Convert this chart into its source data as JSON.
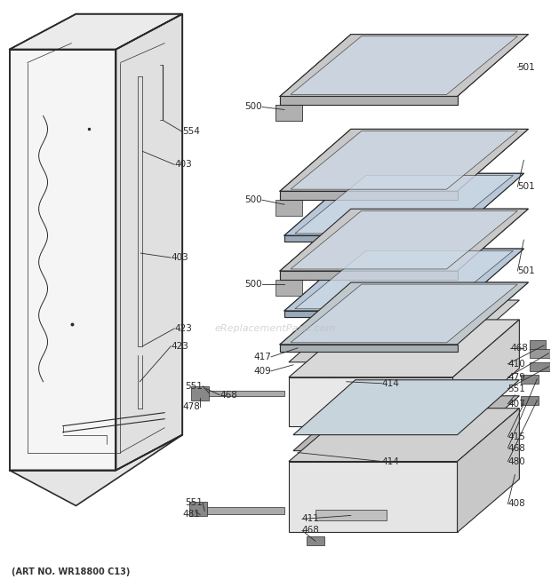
{
  "bg_color": "#ffffff",
  "line_color": "#2a2a2a",
  "fig_width": 6.2,
  "fig_height": 6.61,
  "dpi": 100,
  "watermark": "eReplacementParts.com",
  "art_no": "(ART NO. WR18800 C13)"
}
